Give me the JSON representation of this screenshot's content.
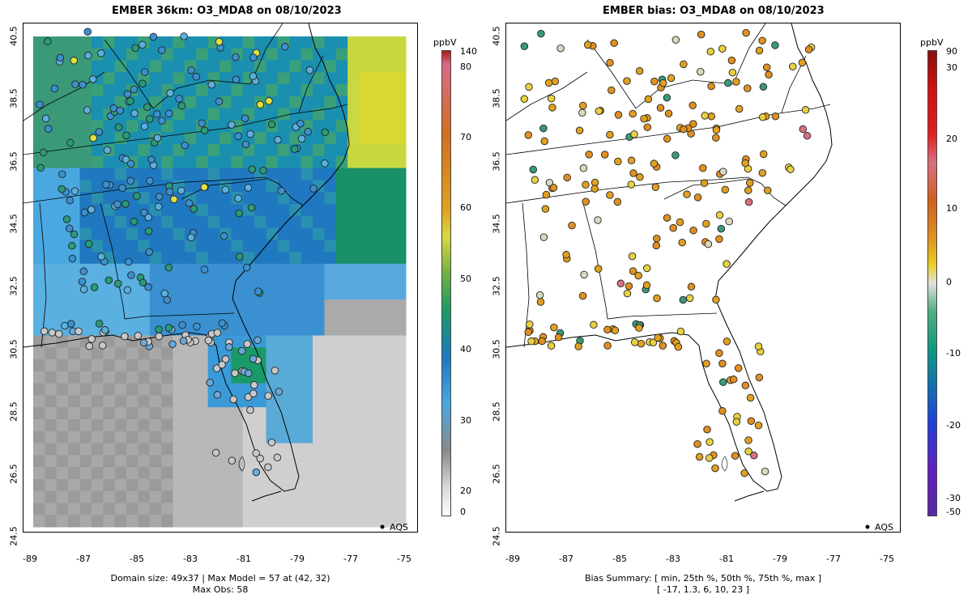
{
  "left_panel": {
    "title": "EMBER 36km: O3_MDA8 on 08/10/2023",
    "caption_line1": "Domain size: 49x37 | Max Model = 57 at (42, 32)",
    "caption_line2": "Max Obs: 58",
    "colorbar_unit": "ppbV",
    "colorbar_ticks": [
      "140",
      "80",
      "70",
      "60",
      "50",
      "40",
      "30",
      "20",
      "0"
    ],
    "legend_label": "AQS"
  },
  "right_panel": {
    "title": "EMBER bias: O3_MDA8 on 08/10/2023",
    "caption_line1": "Bias Summary: [ min, 25th %, 50th %, 75th %, max ]",
    "caption_line2": "[ -17,  1.3,  6,  10,  23 ]",
    "colorbar_unit": "ppbV",
    "colorbar_ticks": [
      "90",
      "30",
      "20",
      "10",
      "0",
      "-10",
      "-20",
      "-30",
      "-50"
    ],
    "legend_label": "AQS"
  },
  "axes": {
    "x_ticks": [
      "-89",
      "-87",
      "-85",
      "-83",
      "-81",
      "-79",
      "-77",
      "-75"
    ],
    "y_ticks": [
      "40.5",
      "38.5",
      "36.5",
      "34.5",
      "32.5",
      "30.5",
      "28.5",
      "26.5",
      "24.5"
    ]
  },
  "colors": {
    "grey_low": "#c8c8c8",
    "blue_mid": "#2a7fc8",
    "green": "#2aa36a",
    "yellow": "#e8e040",
    "orange": "#e08a10",
    "red": "#d8282a"
  }
}
